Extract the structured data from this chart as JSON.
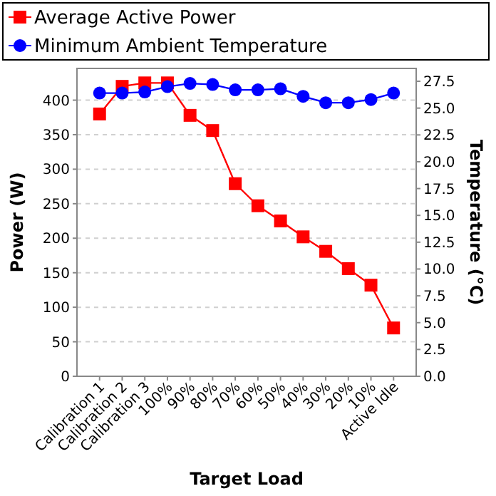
{
  "chart_data": {
    "type": "line",
    "xlabel": "Target Load",
    "ylabel": "Power (W)",
    "y2label": "Temperature (°C)",
    "categories": [
      "Calibration 1",
      "Calibration 2",
      "Calibration 3",
      "100%",
      "90%",
      "80%",
      "70%",
      "60%",
      "50%",
      "40%",
      "30%",
      "20%",
      "10%",
      "Active Idle"
    ],
    "series": [
      {
        "name": "Average Active Power",
        "color": "#ff0000",
        "marker": "square",
        "values": [
          380,
          420,
          425,
          425,
          378,
          356,
          279,
          247,
          225,
          202,
          181,
          156,
          132,
          70
        ]
      },
      {
        "name": "Minimum Ambient Temperature",
        "color": "#0000ff",
        "marker": "circle",
        "axis": "y2",
        "values": [
          26.4,
          26.4,
          26.5,
          27.0,
          27.3,
          27.2,
          26.7,
          26.7,
          26.8,
          26.1,
          25.5,
          25.5,
          25.8,
          26.4
        ]
      }
    ],
    "ylim": [
      0,
      446
    ],
    "yticks": [
      0,
      50,
      100,
      150,
      200,
      250,
      300,
      350,
      400
    ],
    "y2lim": [
      0,
      28.7
    ],
    "y2ticks": [
      {
        "value": 0,
        "label": "0.0"
      },
      2.5,
      {
        "value": 5,
        "label": "5.0"
      },
      7.5,
      {
        "value": 10,
        "label": "10.0"
      },
      12.5,
      {
        "value": 15,
        "label": "15.0"
      },
      17.5,
      {
        "value": 20,
        "label": "20.0"
      },
      22.5,
      {
        "value": 25,
        "label": "25.0"
      },
      27.5
    ],
    "grid": "y",
    "legend": "top"
  }
}
